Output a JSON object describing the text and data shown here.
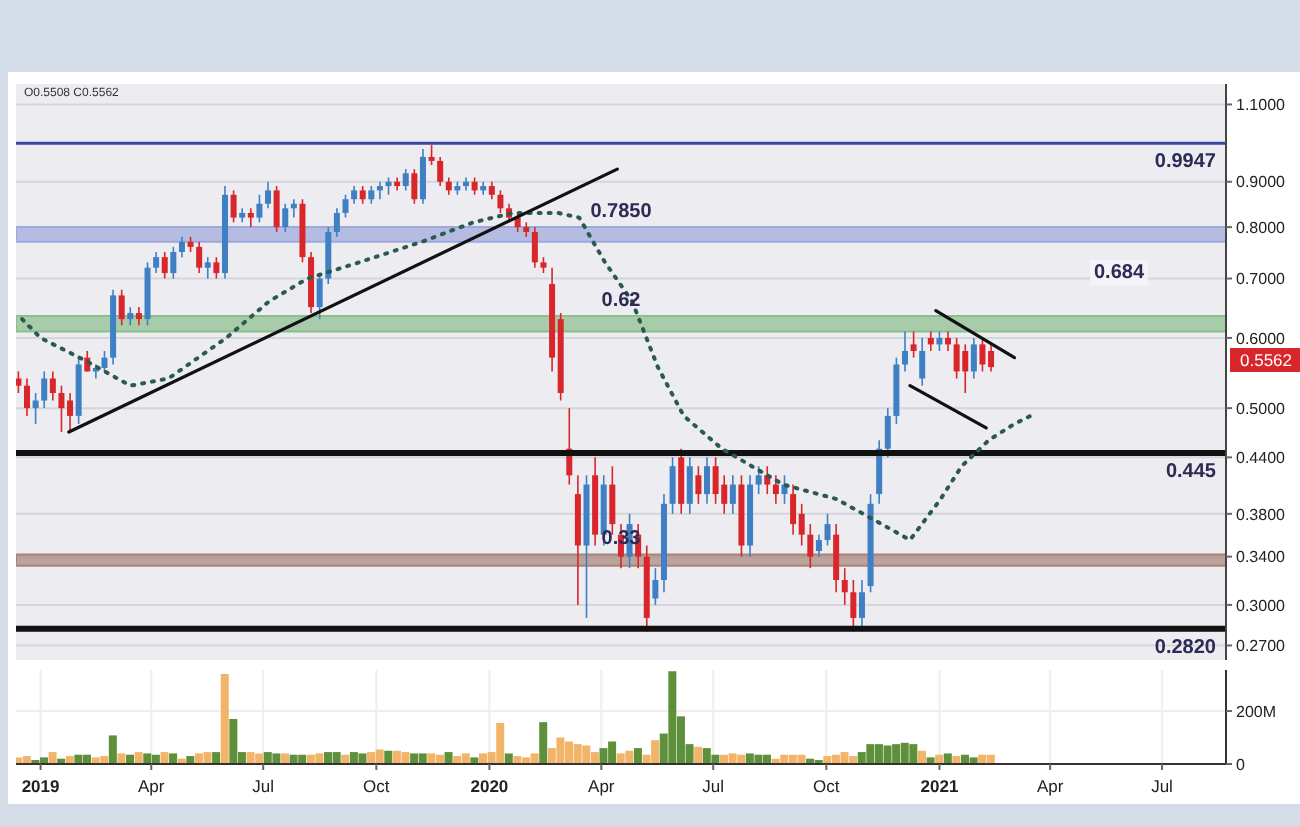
{
  "chart_data": [
    {
      "type": "candlestick",
      "log": "y",
      "grid": true,
      "tick_labels": "y",
      "xlim": [
        "2018-12-12",
        "2021-08-22"
      ],
      "xticks": [
        {
          "value": "2019-01-01",
          "label": null
        },
        {
          "value": "2019-04-01",
          "label": null
        },
        {
          "value": "2019-07-01",
          "label": null
        },
        {
          "value": "2019-10-01",
          "label": null
        },
        {
          "value": "2020-01-01",
          "label": null
        },
        {
          "value": "2020-04-01",
          "label": null
        },
        {
          "value": "2020-07-01",
          "label": null
        },
        {
          "value": "2020-10-01",
          "label": null
        },
        {
          "value": "2021-01-01",
          "label": null
        },
        {
          "value": "2021-04-01",
          "label": null
        },
        {
          "value": "2021-07-01",
          "label": null
        }
      ],
      "ylim": [
        0.26,
        1.16
      ],
      "yticks": [
        {
          "value": 0.27,
          "label": "0.2700"
        },
        {
          "value": 0.3,
          "label": "0.3000"
        },
        {
          "value": 0.34,
          "label": "0.3400"
        },
        {
          "value": 0.38,
          "label": "0.3800"
        },
        {
          "value": 0.44,
          "label": "0.4400"
        },
        {
          "value": 0.5,
          "label": "0.5000"
        },
        {
          "value": 0.6,
          "label": "0.6000"
        },
        {
          "value": 0.7,
          "label": "0.7000"
        },
        {
          "value": 0.8,
          "label": "0.8000"
        },
        {
          "value": 0.9,
          "label": "0.9000"
        },
        {
          "value": 1.1,
          "label": "1.1000"
        }
      ],
      "x": [
        "2018-12-14",
        "2018-12-21",
        "2018-12-28",
        "2019-01-04",
        "2019-01-11",
        "2019-01-18",
        "2019-01-25",
        "2019-02-01",
        "2019-02-08",
        "2019-02-15",
        "2019-02-22",
        "2019-03-01",
        "2019-03-08",
        "2019-03-15",
        "2019-03-22",
        "2019-03-29",
        "2019-04-05",
        "2019-04-12",
        "2019-04-19",
        "2019-04-26",
        "2019-05-03",
        "2019-05-10",
        "2019-05-17",
        "2019-05-24",
        "2019-05-31",
        "2019-06-07",
        "2019-06-14",
        "2019-06-21",
        "2019-06-28",
        "2019-07-05",
        "2019-07-12",
        "2019-07-19",
        "2019-07-26",
        "2019-08-02",
        "2019-08-09",
        "2019-08-16",
        "2019-08-23",
        "2019-08-30",
        "2019-09-06",
        "2019-09-13",
        "2019-09-20",
        "2019-09-27",
        "2019-10-04",
        "2019-10-11",
        "2019-10-18",
        "2019-10-25",
        "2019-11-01",
        "2019-11-08",
        "2019-11-15",
        "2019-11-22",
        "2019-11-29",
        "2019-12-06",
        "2019-12-13",
        "2019-12-20",
        "2019-12-27",
        "2020-01-03",
        "2020-01-10",
        "2020-01-17",
        "2020-01-24",
        "2020-01-31",
        "2020-02-07",
        "2020-02-14",
        "2020-02-21",
        "2020-02-28",
        "2020-03-06",
        "2020-03-13",
        "2020-03-20",
        "2020-03-27",
        "2020-04-03",
        "2020-04-10",
        "2020-04-17",
        "2020-04-24",
        "2020-05-01",
        "2020-05-08",
        "2020-05-15",
        "2020-05-22",
        "2020-05-29",
        "2020-06-05",
        "2020-06-12",
        "2020-06-19",
        "2020-06-26",
        "2020-07-03",
        "2020-07-10",
        "2020-07-17",
        "2020-07-24",
        "2020-07-31",
        "2020-08-07",
        "2020-08-14",
        "2020-08-21",
        "2020-08-28",
        "2020-09-04",
        "2020-09-11",
        "2020-09-18",
        "2020-09-25",
        "2020-10-02",
        "2020-10-09",
        "2020-10-16",
        "2020-10-23",
        "2020-10-30",
        "2020-11-06",
        "2020-11-13",
        "2020-11-20",
        "2020-11-27",
        "2020-12-04",
        "2020-12-11",
        "2020-12-18",
        "2020-12-25",
        "2021-01-01",
        "2021-01-08",
        "2021-01-15",
        "2021-01-22",
        "2021-01-29",
        "2021-02-05",
        "2021-02-12"
      ],
      "ohlc": [
        [
          0.54,
          0.55,
          0.52,
          0.53
        ],
        [
          0.53,
          0.54,
          0.49,
          0.5
        ],
        [
          0.5,
          0.52,
          0.48,
          0.51
        ],
        [
          0.51,
          0.55,
          0.5,
          0.54
        ],
        [
          0.54,
          0.55,
          0.51,
          0.52
        ],
        [
          0.52,
          0.53,
          0.47,
          0.5
        ],
        [
          0.51,
          0.52,
          0.47,
          0.49
        ],
        [
          0.49,
          0.57,
          0.48,
          0.56
        ],
        [
          0.57,
          0.58,
          0.55,
          0.55
        ],
        [
          0.55,
          0.56,
          0.54,
          0.555
        ],
        [
          0.555,
          0.58,
          0.55,
          0.57
        ],
        [
          0.57,
          0.68,
          0.56,
          0.67
        ],
        [
          0.67,
          0.68,
          0.62,
          0.63
        ],
        [
          0.63,
          0.65,
          0.62,
          0.64
        ],
        [
          0.64,
          0.65,
          0.62,
          0.63
        ],
        [
          0.63,
          0.73,
          0.62,
          0.72
        ],
        [
          0.72,
          0.75,
          0.71,
          0.74
        ],
        [
          0.74,
          0.75,
          0.7,
          0.71
        ],
        [
          0.71,
          0.76,
          0.7,
          0.75
        ],
        [
          0.75,
          0.78,
          0.74,
          0.77
        ],
        [
          0.77,
          0.78,
          0.75,
          0.76
        ],
        [
          0.76,
          0.77,
          0.71,
          0.72
        ],
        [
          0.72,
          0.74,
          0.7,
          0.73
        ],
        [
          0.73,
          0.74,
          0.7,
          0.71
        ],
        [
          0.71,
          0.89,
          0.7,
          0.87
        ],
        [
          0.87,
          0.88,
          0.81,
          0.82
        ],
        [
          0.82,
          0.84,
          0.81,
          0.83
        ],
        [
          0.83,
          0.84,
          0.8,
          0.82
        ],
        [
          0.82,
          0.87,
          0.81,
          0.85
        ],
        [
          0.85,
          0.9,
          0.84,
          0.88
        ],
        [
          0.88,
          0.89,
          0.79,
          0.8
        ],
        [
          0.8,
          0.85,
          0.79,
          0.84
        ],
        [
          0.84,
          0.86,
          0.82,
          0.85
        ],
        [
          0.85,
          0.86,
          0.73,
          0.74
        ],
        [
          0.74,
          0.75,
          0.64,
          0.65
        ],
        [
          0.65,
          0.71,
          0.63,
          0.7
        ],
        [
          0.7,
          0.8,
          0.69,
          0.79
        ],
        [
          0.79,
          0.84,
          0.78,
          0.83
        ],
        [
          0.83,
          0.87,
          0.82,
          0.86
        ],
        [
          0.86,
          0.89,
          0.85,
          0.88
        ],
        [
          0.88,
          0.89,
          0.85,
          0.86
        ],
        [
          0.86,
          0.89,
          0.85,
          0.88
        ],
        [
          0.88,
          0.9,
          0.86,
          0.89
        ],
        [
          0.89,
          0.91,
          0.87,
          0.9
        ],
        [
          0.9,
          0.91,
          0.88,
          0.89
        ],
        [
          0.89,
          0.93,
          0.88,
          0.92
        ],
        [
          0.92,
          0.93,
          0.85,
          0.86
        ],
        [
          0.86,
          0.98,
          0.85,
          0.96
        ],
        [
          0.96,
          0.99,
          0.94,
          0.95
        ],
        [
          0.95,
          0.96,
          0.89,
          0.9
        ],
        [
          0.9,
          0.91,
          0.87,
          0.88
        ],
        [
          0.88,
          0.9,
          0.87,
          0.89
        ],
        [
          0.89,
          0.91,
          0.88,
          0.9
        ],
        [
          0.9,
          0.91,
          0.87,
          0.88
        ],
        [
          0.88,
          0.9,
          0.87,
          0.89
        ],
        [
          0.89,
          0.9,
          0.86,
          0.87
        ],
        [
          0.87,
          0.88,
          0.83,
          0.84
        ],
        [
          0.84,
          0.85,
          0.81,
          0.82
        ],
        [
          0.82,
          0.83,
          0.79,
          0.8
        ],
        [
          0.8,
          0.81,
          0.78,
          0.79
        ],
        [
          0.79,
          0.8,
          0.72,
          0.73
        ],
        [
          0.73,
          0.74,
          0.71,
          0.72
        ],
        [
          0.69,
          0.72,
          0.55,
          0.57
        ],
        [
          0.63,
          0.64,
          0.51,
          0.52
        ],
        [
          0.45,
          0.5,
          0.41,
          0.42
        ],
        [
          0.4,
          0.42,
          0.3,
          0.35
        ],
        [
          0.35,
          0.42,
          0.29,
          0.41
        ],
        [
          0.42,
          0.44,
          0.35,
          0.36
        ],
        [
          0.36,
          0.42,
          0.35,
          0.41
        ],
        [
          0.41,
          0.43,
          0.36,
          0.37
        ],
        [
          0.36,
          0.37,
          0.33,
          0.34
        ],
        [
          0.34,
          0.38,
          0.33,
          0.37
        ],
        [
          0.36,
          0.37,
          0.33,
          0.34
        ],
        [
          0.34,
          0.35,
          0.28,
          0.29
        ],
        [
          0.305,
          0.33,
          0.3,
          0.32
        ],
        [
          0.32,
          0.4,
          0.31,
          0.39
        ],
        [
          0.39,
          0.44,
          0.38,
          0.43
        ],
        [
          0.44,
          0.45,
          0.38,
          0.39
        ],
        [
          0.39,
          0.44,
          0.38,
          0.43
        ],
        [
          0.42,
          0.43,
          0.39,
          0.4
        ],
        [
          0.4,
          0.44,
          0.39,
          0.43
        ],
        [
          0.43,
          0.44,
          0.39,
          0.4
        ],
        [
          0.41,
          0.42,
          0.38,
          0.39
        ],
        [
          0.39,
          0.42,
          0.38,
          0.41
        ],
        [
          0.41,
          0.42,
          0.34,
          0.35
        ],
        [
          0.35,
          0.42,
          0.34,
          0.41
        ],
        [
          0.41,
          0.43,
          0.4,
          0.42
        ],
        [
          0.42,
          0.43,
          0.4,
          0.41
        ],
        [
          0.41,
          0.42,
          0.39,
          0.4
        ],
        [
          0.4,
          0.42,
          0.39,
          0.41
        ],
        [
          0.4,
          0.41,
          0.36,
          0.37
        ],
        [
          0.38,
          0.39,
          0.35,
          0.36
        ],
        [
          0.36,
          0.37,
          0.33,
          0.34
        ],
        [
          0.345,
          0.36,
          0.34,
          0.355
        ],
        [
          0.355,
          0.38,
          0.35,
          0.37
        ],
        [
          0.36,
          0.37,
          0.31,
          0.32
        ],
        [
          0.32,
          0.33,
          0.3,
          0.31
        ],
        [
          0.31,
          0.32,
          0.28,
          0.29
        ],
        [
          0.29,
          0.32,
          0.28,
          0.31
        ],
        [
          0.315,
          0.4,
          0.31,
          0.39
        ],
        [
          0.4,
          0.46,
          0.39,
          0.45
        ],
        [
          0.45,
          0.5,
          0.44,
          0.49
        ],
        [
          0.49,
          0.57,
          0.48,
          0.56
        ],
        [
          0.56,
          0.61,
          0.55,
          0.58
        ],
        [
          0.59,
          0.61,
          0.57,
          0.58
        ],
        [
          0.54,
          0.6,
          0.53,
          0.58
        ],
        [
          0.6,
          0.61,
          0.58,
          0.59
        ],
        [
          0.59,
          0.61,
          0.58,
          0.6
        ],
        [
          0.6,
          0.61,
          0.58,
          0.59
        ],
        [
          0.59,
          0.6,
          0.54,
          0.55
        ],
        [
          0.58,
          0.59,
          0.52,
          0.55
        ],
        [
          0.55,
          0.6,
          0.54,
          0.59
        ],
        [
          0.59,
          0.6,
          0.55,
          0.56
        ],
        [
          0.58,
          0.59,
          0.55,
          0.5562
        ]
      ],
      "colors": [
        "#d8262a",
        "#d8262a",
        "#3f7fc4",
        "#3f7fc4",
        "#d8262a",
        "#d8262a",
        "#d8262a",
        "#3f7fc4",
        "#d8262a",
        "#3f7fc4",
        "#3f7fc4",
        "#3f7fc4",
        "#d8262a",
        "#3f7fc4",
        "#d8262a",
        "#3f7fc4",
        "#3f7fc4",
        "#d8262a",
        "#3f7fc4",
        "#3f7fc4",
        "#d8262a",
        "#d8262a",
        "#3f7fc4",
        "#d8262a",
        "#3f7fc4",
        "#d8262a",
        "#3f7fc4",
        "#d8262a",
        "#3f7fc4",
        "#3f7fc4",
        "#d8262a",
        "#3f7fc4",
        "#3f7fc4",
        "#d8262a",
        "#d8262a",
        "#3f7fc4",
        "#3f7fc4",
        "#3f7fc4",
        "#3f7fc4",
        "#3f7fc4",
        "#d8262a",
        "#3f7fc4",
        "#3f7fc4",
        "#3f7fc4",
        "#d8262a",
        "#3f7fc4",
        "#d8262a",
        "#3f7fc4",
        "#d8262a",
        "#d8262a",
        "#d8262a",
        "#3f7fc4",
        "#3f7fc4",
        "#d8262a",
        "#3f7fc4",
        "#d8262a",
        "#d8262a",
        "#d8262a",
        "#d8262a",
        "#d8262a",
        "#d8262a",
        "#d8262a",
        "#d8262a",
        "#d8262a",
        "#d8262a",
        "#d8262a",
        "#3f7fc4",
        "#d8262a",
        "#3f7fc4",
        "#d8262a",
        "#d8262a",
        "#3f7fc4",
        "#d8262a",
        "#d8262a",
        "#3f7fc4",
        "#3f7fc4",
        "#3f7fc4",
        "#d8262a",
        "#3f7fc4",
        "#d8262a",
        "#3f7fc4",
        "#d8262a",
        "#d8262a",
        "#3f7fc4",
        "#d8262a",
        "#3f7fc4",
        "#3f7fc4",
        "#d8262a",
        "#d8262a",
        "#3f7fc4",
        "#d8262a",
        "#d8262a",
        "#d8262a",
        "#3f7fc4",
        "#3f7fc4",
        "#d8262a",
        "#d8262a",
        "#d8262a",
        "#3f7fc4",
        "#3f7fc4",
        "#3f7fc4",
        "#3f7fc4",
        "#3f7fc4",
        "#3f7fc4",
        "#d8262a",
        "#3f7fc4",
        "#d8262a",
        "#3f7fc4",
        "#d8262a",
        "#d8262a",
        "#d8262a",
        "#3f7fc4",
        "#d8262a",
        "#d8262a"
      ],
      "series": [
        {
          "type": "line",
          "line_style": "dotted",
          "color": "#2b5a50",
          "x": [
            "2018-12-17",
            "2019-01-01",
            "2019-02-06",
            "2019-03-15",
            "2019-04-15",
            "2019-06-01",
            "2019-07-06",
            "2019-08-06",
            "2019-09-17",
            "2019-11-07",
            "2019-12-19",
            "2020-01-20",
            "2020-02-26",
            "2020-03-14",
            "2020-04-04",
            "2020-04-26",
            "2020-05-17",
            "2020-06-07",
            "2020-07-08",
            "2020-08-27",
            "2020-10-09",
            "2020-11-15",
            "2020-12-08",
            "2021-01-02",
            "2021-01-19",
            "2021-02-10",
            "2021-03-03",
            "2021-03-16"
          ],
          "values": [
            0.63,
            0.6,
            0.566,
            0.53,
            0.54,
            0.6,
            0.66,
            0.7,
            0.73,
            0.77,
            0.81,
            0.83,
            0.83,
            0.82,
            0.73,
            0.66,
            0.556,
            0.49,
            0.45,
            0.41,
            0.395,
            0.37,
            0.355,
            0.395,
            0.43,
            0.46,
            0.48,
            0.49
          ]
        },
        {
          "type": "line",
          "line_style": "solid",
          "color": "#111111",
          "x": [
            "2019-01-24",
            "2020-04-14"
          ],
          "values": [
            0.47,
            0.93
          ]
        },
        {
          "type": "line",
          "line_style": "solid",
          "color": "#111111",
          "x": [
            "2020-12-29",
            "2021-03-03"
          ],
          "values": [
            0.644,
            0.57
          ]
        },
        {
          "type": "line",
          "line_style": "solid",
          "color": "#111111",
          "x": [
            "2020-12-08",
            "2021-02-08"
          ],
          "values": [
            0.53,
            0.475
          ]
        }
      ],
      "ref_lines": [
        {
          "axis": "y",
          "value": 0.9947,
          "label": "0.9947",
          "color": "#3a48a8"
        },
        {
          "axis": "y",
          "value": 0.445,
          "label": "0.445",
          "color": "#111111"
        },
        {
          "axis": "y",
          "value": 0.282,
          "label": "0.2820",
          "color": "#111111"
        }
      ],
      "bands": [
        {
          "axis": "y",
          "from": 0.77,
          "to": 0.8,
          "label": "0.7850",
          "color": "#9ea8dc"
        },
        {
          "axis": "y",
          "from": 0.61,
          "to": 0.635,
          "label": "0.62",
          "color": "#8cbf8c"
        },
        {
          "axis": "y",
          "from": 0.332,
          "to": 0.342,
          "label": "0.33",
          "color": "#a88478"
        }
      ],
      "annotations": [
        "O0.5508 C0.5562",
        "0.684",
        "0.5562"
      ]
    },
    {
      "type": "bar",
      "grid": true,
      "xlim": [
        "2018-12-12",
        "2021-08-22"
      ],
      "xticks": [
        {
          "value": "2019-01-01",
          "label": "2019"
        },
        {
          "value": "2019-04-01",
          "label": "Apr"
        },
        {
          "value": "2019-07-01",
          "label": "Jul"
        },
        {
          "value": "2019-10-01",
          "label": "Oct"
        },
        {
          "value": "2020-01-01",
          "label": "2020"
        },
        {
          "value": "2020-04-01",
          "label": "Apr"
        },
        {
          "value": "2020-07-01",
          "label": "Jul"
        },
        {
          "value": "2020-10-01",
          "label": "Oct"
        },
        {
          "value": "2021-01-01",
          "label": "2021"
        },
        {
          "value": "2021-04-01",
          "label": "Apr"
        },
        {
          "value": "2021-07-01",
          "label": "Jul"
        }
      ],
      "ylim": [
        0,
        355
      ],
      "yticks": [
        0,
        {
          "value": 200,
          "label": "200M"
        }
      ],
      "x": [
        "2018-12-14",
        "2018-12-21",
        "2018-12-28",
        "2019-01-04",
        "2019-01-11",
        "2019-01-18",
        "2019-01-25",
        "2019-02-01",
        "2019-02-08",
        "2019-02-15",
        "2019-02-22",
        "2019-03-01",
        "2019-03-08",
        "2019-03-15",
        "2019-03-22",
        "2019-03-29",
        "2019-04-05",
        "2019-04-12",
        "2019-04-19",
        "2019-04-26",
        "2019-05-03",
        "2019-05-10",
        "2019-05-17",
        "2019-05-24",
        "2019-05-31",
        "2019-06-07",
        "2019-06-14",
        "2019-06-21",
        "2019-06-28",
        "2019-07-05",
        "2019-07-12",
        "2019-07-19",
        "2019-07-26",
        "2019-08-02",
        "2019-08-09",
        "2019-08-16",
        "2019-08-23",
        "2019-08-30",
        "2019-09-06",
        "2019-09-13",
        "2019-09-20",
        "2019-09-27",
        "2019-10-04",
        "2019-10-11",
        "2019-10-18",
        "2019-10-25",
        "2019-11-01",
        "2019-11-08",
        "2019-11-15",
        "2019-11-22",
        "2019-11-29",
        "2019-12-06",
        "2019-12-13",
        "2019-12-20",
        "2019-12-27",
        "2020-01-03",
        "2020-01-10",
        "2020-01-17",
        "2020-01-24",
        "2020-01-31",
        "2020-02-07",
        "2020-02-14",
        "2020-02-21",
        "2020-02-28",
        "2020-03-06",
        "2020-03-13",
        "2020-03-20",
        "2020-03-27",
        "2020-04-03",
        "2020-04-10",
        "2020-04-17",
        "2020-04-24",
        "2020-05-01",
        "2020-05-08",
        "2020-05-15",
        "2020-05-22",
        "2020-05-29",
        "2020-06-05",
        "2020-06-12",
        "2020-06-19",
        "2020-06-26",
        "2020-07-03",
        "2020-07-10",
        "2020-07-17",
        "2020-07-24",
        "2020-07-31",
        "2020-08-07",
        "2020-08-14",
        "2020-08-21",
        "2020-08-28",
        "2020-09-04",
        "2020-09-11",
        "2020-09-18",
        "2020-09-25",
        "2020-10-02",
        "2020-10-09",
        "2020-10-16",
        "2020-10-23",
        "2020-10-30",
        "2020-11-06",
        "2020-11-13",
        "2020-11-20",
        "2020-11-27",
        "2020-12-04",
        "2020-12-11",
        "2020-12-18",
        "2020-12-25",
        "2021-01-01",
        "2021-01-08",
        "2021-01-15",
        "2021-01-22",
        "2021-01-29",
        "2021-02-05",
        "2021-02-12"
      ],
      "values": [
        25,
        30,
        15,
        25,
        45,
        20,
        30,
        35,
        35,
        25,
        30,
        108,
        40,
        35,
        45,
        40,
        35,
        45,
        40,
        20,
        30,
        40,
        45,
        45,
        340,
        170,
        45,
        45,
        40,
        45,
        40,
        40,
        35,
        35,
        35,
        40,
        45,
        45,
        35,
        45,
        40,
        45,
        55,
        50,
        50,
        45,
        40,
        40,
        40,
        35,
        45,
        30,
        40,
        25,
        40,
        45,
        155,
        40,
        30,
        25,
        40,
        158,
        60,
        100,
        85,
        75,
        70,
        45,
        60,
        85,
        40,
        50,
        60,
        35,
        90,
        115,
        350,
        180,
        75,
        65,
        60,
        35,
        35,
        40,
        35,
        40,
        35,
        35,
        20,
        35,
        35,
        35,
        20,
        15,
        30,
        35,
        45,
        30,
        45,
        75,
        75,
        70,
        75,
        80,
        75,
        50,
        25,
        35,
        40,
        30,
        35,
        25,
        35,
        35
      ],
      "colors": [
        "#f2b468",
        "#f2b468",
        "#5e8f3b",
        "#5e8f3b",
        "#f2b468",
        "#5e8f3b",
        "#f2b468",
        "#5e8f3b",
        "#5e8f3b",
        "#f2b468",
        "#f2b468",
        "#5e8f3b",
        "#f2b468",
        "#5e8f3b",
        "#f2b468",
        "#5e8f3b",
        "#5e8f3b",
        "#f2b468",
        "#5e8f3b",
        "#f2b468",
        "#5e8f3b",
        "#f2b468",
        "#f2b468",
        "#5e8f3b",
        "#f2b468",
        "#5e8f3b",
        "#5e8f3b",
        "#f2b468",
        "#f2b468",
        "#5e8f3b",
        "#5e8f3b",
        "#f2b468",
        "#5e8f3b",
        "#5e8f3b",
        "#f2b468",
        "#f2b468",
        "#5e8f3b",
        "#5e8f3b",
        "#f2b468",
        "#5e8f3b",
        "#5e8f3b",
        "#f2b468",
        "#f2b468",
        "#5e8f3b",
        "#f2b468",
        "#f2b468",
        "#5e8f3b",
        "#5e8f3b",
        "#f2b468",
        "#f2b468",
        "#5e8f3b",
        "#f2b468",
        "#f2b468",
        "#5e8f3b",
        "#f2b468",
        "#f2b468",
        "#f2b468",
        "#5e8f3b",
        "#f2b468",
        "#f2b468",
        "#f2b468",
        "#5e8f3b",
        "#f2b468",
        "#f2b468",
        "#f2b468",
        "#f2b468",
        "#f2b468",
        "#f2b468",
        "#5e8f3b",
        "#5e8f3b",
        "#f2b468",
        "#f2b468",
        "#5e8f3b",
        "#f2b468",
        "#f2b468",
        "#5e8f3b",
        "#5e8f3b",
        "#5e8f3b",
        "#5e8f3b",
        "#f2b468",
        "#5e8f3b",
        "#5e8f3b",
        "#f2b468",
        "#f2b468",
        "#f2b468",
        "#5e8f3b",
        "#5e8f3b",
        "#5e8f3b",
        "#f2b468",
        "#f2b468",
        "#f2b468",
        "#f2b468",
        "#5e8f3b",
        "#5e8f3b",
        "#f2b468",
        "#f2b468",
        "#f2b468",
        "#f2b468",
        "#5e8f3b",
        "#5e8f3b",
        "#5e8f3b",
        "#5e8f3b",
        "#5e8f3b",
        "#5e8f3b",
        "#5e8f3b",
        "#f2b468",
        "#5e8f3b",
        "#f2b468",
        "#5e8f3b",
        "#f2b468",
        "#5e8f3b",
        "#5e8f3b",
        "#f2b468",
        "#f2b468"
      ]
    }
  ]
}
